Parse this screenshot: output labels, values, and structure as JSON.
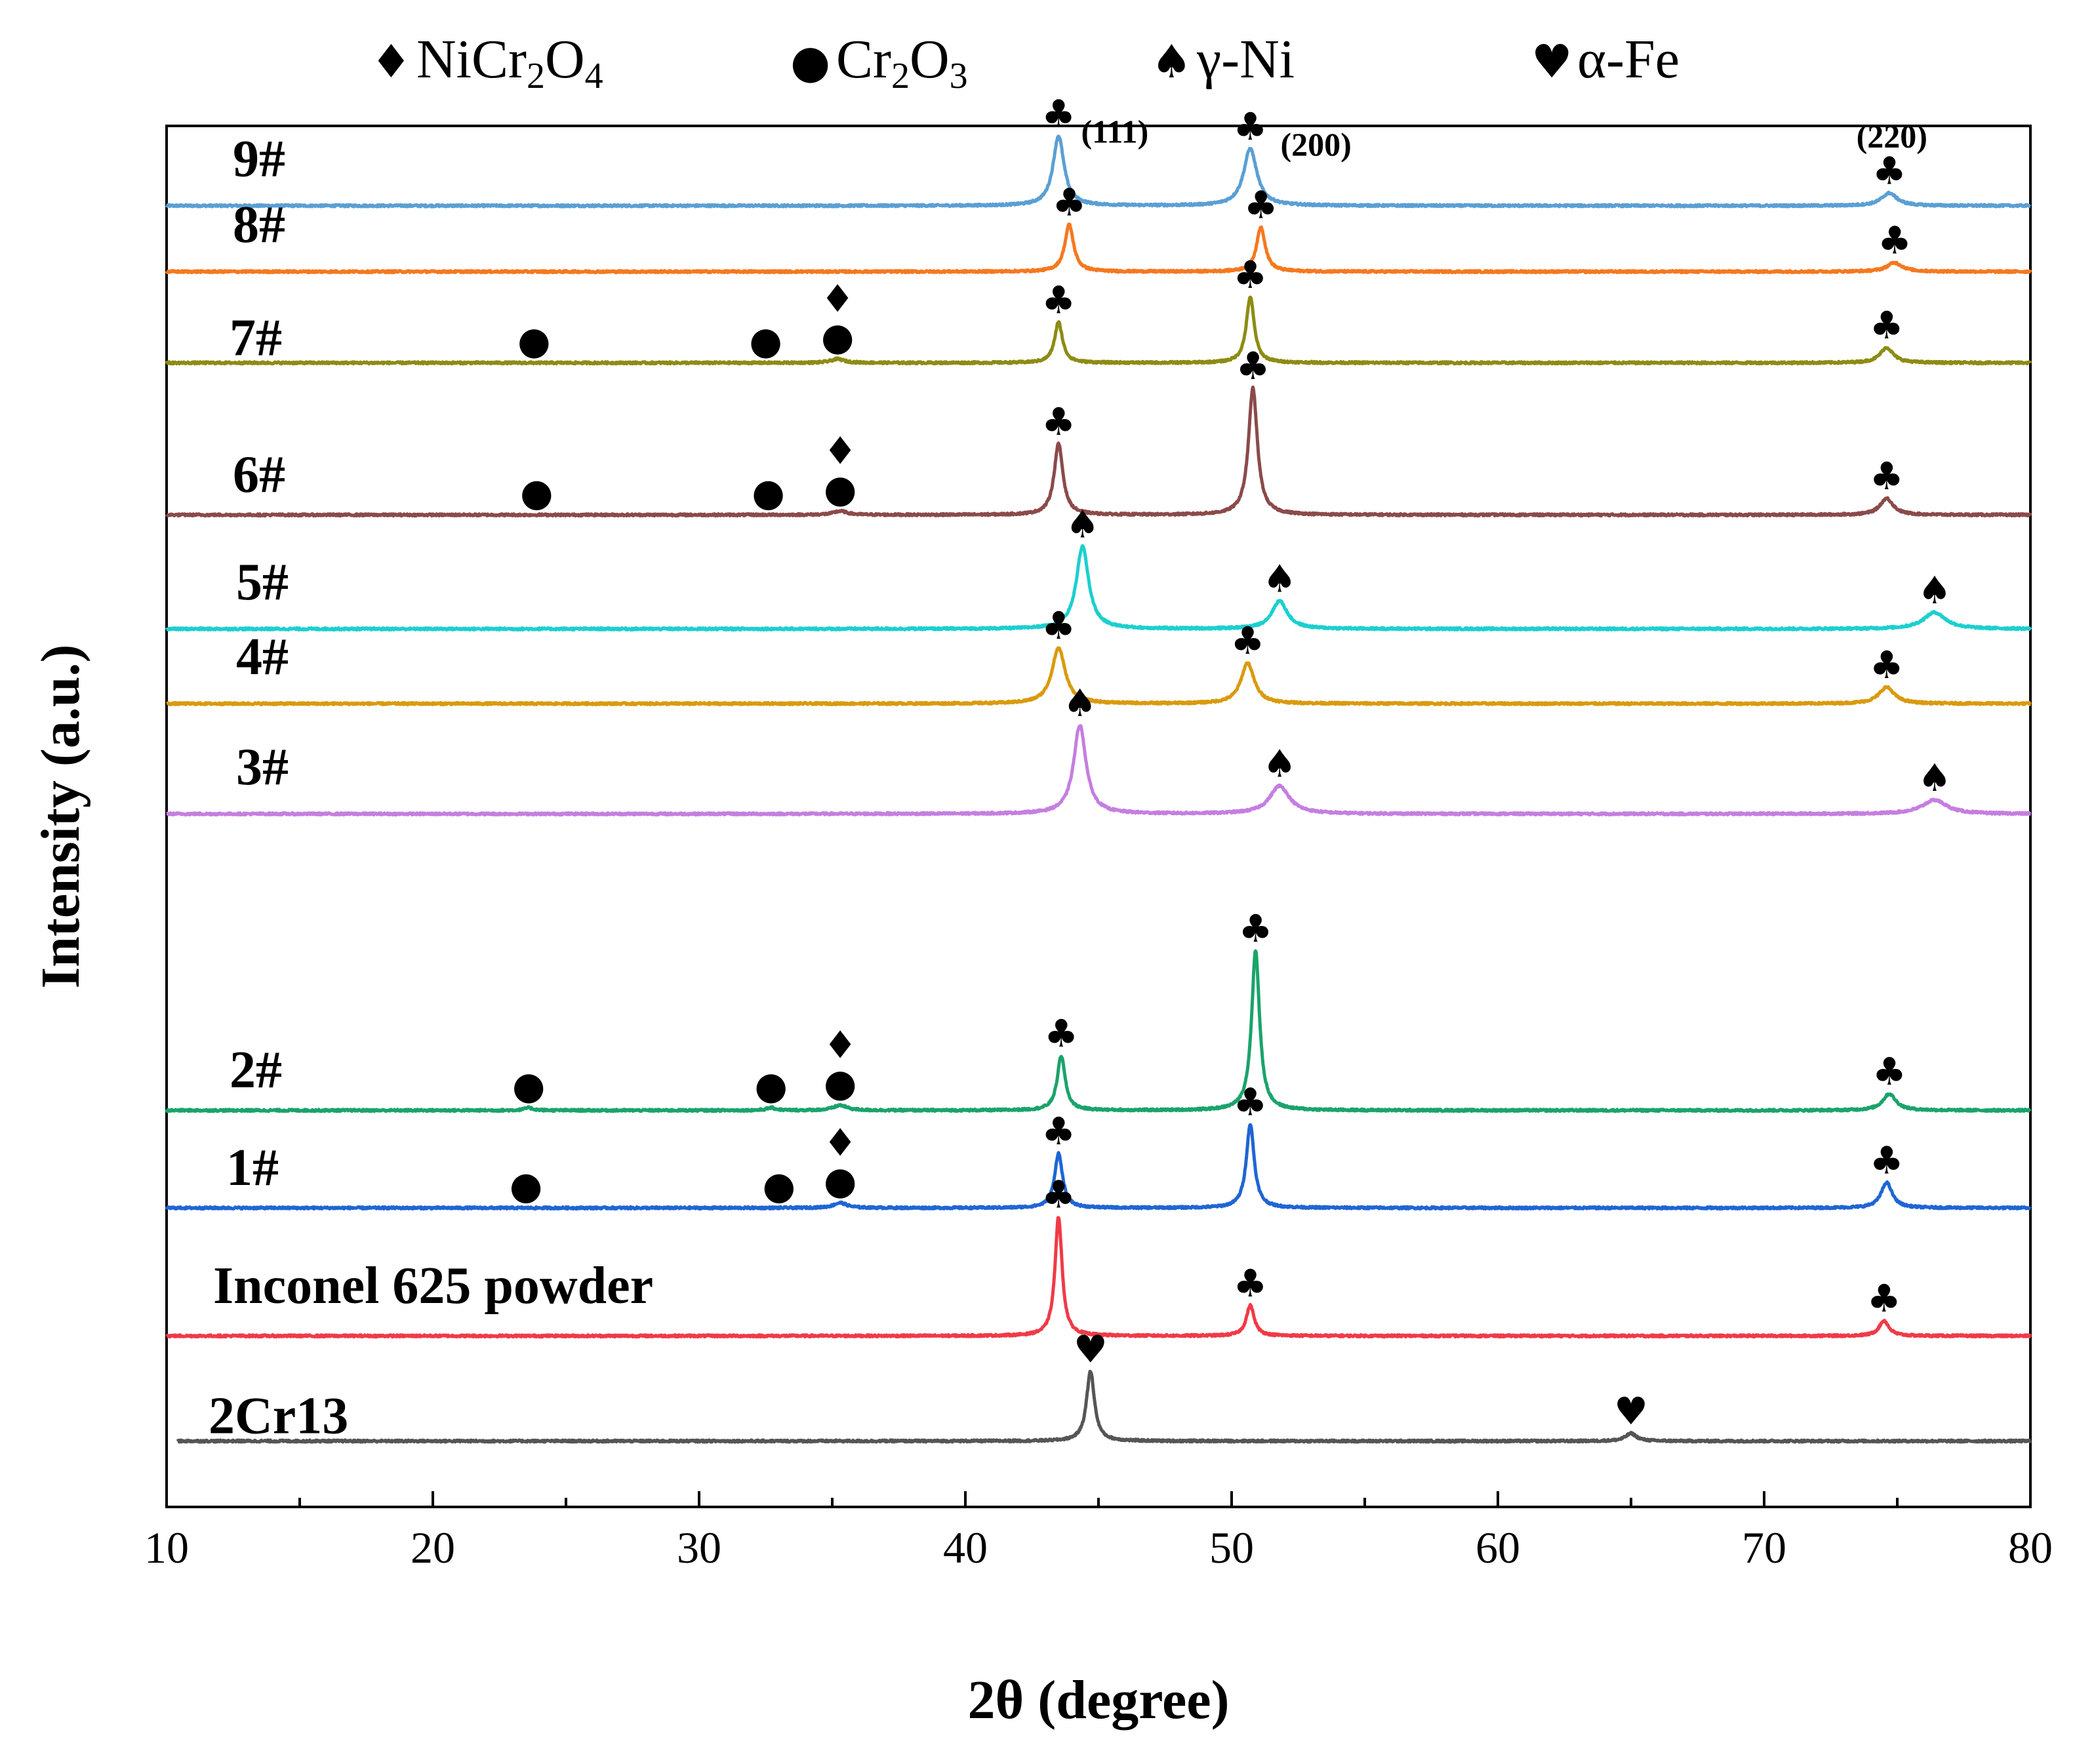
{
  "chart_data": {
    "type": "line",
    "title": "",
    "xlabel": "2θ (degree)",
    "ylabel": "Intensity (a.u.)",
    "xlim": [
      10,
      80
    ],
    "xticks": [
      10,
      20,
      30,
      40,
      50,
      60,
      70,
      80
    ],
    "legend": {
      "placement": "top",
      "entries": [
        {
          "symbol": "♦",
          "base": "NiCr",
          "s1": "2",
          "mid": "O",
          "s2": "4",
          "name": "NiCr2O4"
        },
        {
          "symbol": "●",
          "base": "Cr",
          "s1": "2",
          "mid": "O",
          "s2": "3",
          "name": "Cr2O3"
        },
        {
          "symbol": "♠",
          "base": "γ-Ni",
          "s1": "",
          "mid": "",
          "s2": "",
          "name": "γ-Ni"
        },
        {
          "symbol": "♥",
          "base": "α-Fe",
          "s1": "",
          "mid": "",
          "s2": "",
          "name": "α-Fe"
        }
      ]
    },
    "plane_labels": [
      {
        "text": "(111)",
        "x": 44.2,
        "series": "9#"
      },
      {
        "text": "(200)",
        "x": 51.6,
        "series": "9#"
      },
      {
        "text": "(220)",
        "x": 74.7,
        "series": "9#"
      }
    ],
    "series": [
      {
        "name": "9#",
        "color": "#5a9fd4",
        "baseline": 0.937,
        "xstart": 10,
        "peaks": [
          {
            "x": 43.5,
            "h": 0.055,
            "w": 0.25,
            "marker": "♣"
          },
          {
            "x": 50.7,
            "h": 0.045,
            "w": 0.3,
            "marker": "♣"
          },
          {
            "x": 74.7,
            "h": 0.01,
            "w": 0.35,
            "marker": "♣"
          }
        ]
      },
      {
        "name": "8#",
        "color": "#f5781f",
        "baseline": 0.885,
        "xstart": 10,
        "peaks": [
          {
            "x": 43.9,
            "h": 0.037,
            "w": 0.2,
            "marker": "♣"
          },
          {
            "x": 51.1,
            "h": 0.035,
            "w": 0.2,
            "marker": "♣"
          },
          {
            "x": 74.9,
            "h": 0.007,
            "w": 0.35,
            "marker": "♣"
          }
        ]
      },
      {
        "name": "7#",
        "color": "#8c8c14",
        "baseline": 0.813,
        "xstart": 10,
        "peaks": [
          {
            "x": 23.8,
            "h": 0.0,
            "w": 0.3,
            "marker": "●"
          },
          {
            "x": 32.5,
            "h": 0.0,
            "w": 0.3,
            "marker": "●"
          },
          {
            "x": 35.2,
            "h": 0.003,
            "w": 0.3,
            "marker": "●",
            "marker2": "♦"
          },
          {
            "x": 43.5,
            "h": 0.032,
            "w": 0.18,
            "marker": "♣"
          },
          {
            "x": 50.7,
            "h": 0.052,
            "w": 0.18,
            "marker": "♣"
          },
          {
            "x": 74.6,
            "h": 0.012,
            "w": 0.3,
            "marker": "♣"
          }
        ]
      },
      {
        "name": "6#",
        "color": "#8b4a4a",
        "baseline": 0.693,
        "xstart": 10,
        "peaks": [
          {
            "x": 23.9,
            "h": 0.0,
            "w": 0.3,
            "marker": "●"
          },
          {
            "x": 32.6,
            "h": 0.0,
            "w": 0.3,
            "marker": "●"
          },
          {
            "x": 35.3,
            "h": 0.003,
            "w": 0.3,
            "marker": "●",
            "marker2": "♦"
          },
          {
            "x": 43.5,
            "h": 0.056,
            "w": 0.2,
            "marker": "♣"
          },
          {
            "x": 50.8,
            "h": 0.1,
            "w": 0.2,
            "marker": "♣"
          },
          {
            "x": 74.6,
            "h": 0.013,
            "w": 0.3,
            "marker": "♣"
          }
        ]
      },
      {
        "name": "5#",
        "color": "#1ccfcf",
        "baseline": 0.603,
        "xstart": 10,
        "peaks": [
          {
            "x": 44.4,
            "h": 0.065,
            "w": 0.28,
            "marker": "♠"
          },
          {
            "x": 51.8,
            "h": 0.022,
            "w": 0.35,
            "marker": "♠"
          },
          {
            "x": 76.4,
            "h": 0.013,
            "w": 0.5,
            "marker": "♠"
          }
        ]
      },
      {
        "name": "4#",
        "color": "#d99a0e",
        "baseline": 0.544,
        "xstart": 10,
        "peaks": [
          {
            "x": 43.5,
            "h": 0.044,
            "w": 0.3,
            "marker": "♣"
          },
          {
            "x": 50.6,
            "h": 0.032,
            "w": 0.3,
            "marker": "♣"
          },
          {
            "x": 74.6,
            "h": 0.013,
            "w": 0.35,
            "marker": "♣"
          }
        ]
      },
      {
        "name": "3#",
        "color": "#c57ee0",
        "baseline": 0.457,
        "xstart": 10,
        "peaks": [
          {
            "x": 44.3,
            "h": 0.07,
            "w": 0.28,
            "marker": "♠"
          },
          {
            "x": 51.8,
            "h": 0.022,
            "w": 0.45,
            "marker": "♠"
          },
          {
            "x": 76.4,
            "h": 0.011,
            "w": 0.55,
            "marker": "♠"
          }
        ]
      },
      {
        "name": "2#",
        "color": "#1aa36b",
        "baseline": 0.223,
        "xstart": 10,
        "peaks": [
          {
            "x": 23.6,
            "h": 0.002,
            "w": 0.2,
            "marker": "●"
          },
          {
            "x": 32.7,
            "h": 0.002,
            "w": 0.2,
            "marker": "●"
          },
          {
            "x": 35.3,
            "h": 0.004,
            "w": 0.3,
            "marker": "●",
            "marker2": "♦"
          },
          {
            "x": 43.6,
            "h": 0.043,
            "w": 0.18,
            "marker": "♣"
          },
          {
            "x": 50.9,
            "h": 0.126,
            "w": 0.18,
            "marker": "♣"
          },
          {
            "x": 74.7,
            "h": 0.013,
            "w": 0.3,
            "marker": "♣"
          }
        ]
      },
      {
        "name": "1#",
        "color": "#1f65d4",
        "baseline": 0.146,
        "xstart": 10,
        "peaks": [
          {
            "x": 23.5,
            "h": 0.0,
            "w": 0.3,
            "marker": "●"
          },
          {
            "x": 33.0,
            "h": 0.0,
            "w": 0.3,
            "marker": "●"
          },
          {
            "x": 35.3,
            "h": 0.004,
            "w": 0.3,
            "marker": "●",
            "marker2": "♦"
          },
          {
            "x": 43.5,
            "h": 0.043,
            "w": 0.18,
            "marker": "♣"
          },
          {
            "x": 50.7,
            "h": 0.066,
            "w": 0.18,
            "marker": "♣"
          },
          {
            "x": 74.6,
            "h": 0.02,
            "w": 0.25,
            "marker": "♣"
          }
        ]
      },
      {
        "name": "Inconel 625 powder",
        "color": "#f03a47",
        "baseline": 0.045,
        "xstart": 10,
        "peaks": [
          {
            "x": 43.5,
            "h": 0.094,
            "w": 0.16,
            "marker": "♣"
          },
          {
            "x": 50.7,
            "h": 0.024,
            "w": 0.18,
            "marker": "♣"
          },
          {
            "x": 74.5,
            "h": 0.012,
            "w": 0.22,
            "marker": "♣"
          }
        ]
      },
      {
        "name": "2Cr13",
        "color": "#555555",
        "baseline": -0.038,
        "xstart": 10.4,
        "peaks": [
          {
            "x": 44.7,
            "h": 0.055,
            "w": 0.18,
            "marker": "♥"
          },
          {
            "x": 65.0,
            "h": 0.006,
            "w": 0.25,
            "marker": "♥"
          }
        ]
      }
    ]
  }
}
